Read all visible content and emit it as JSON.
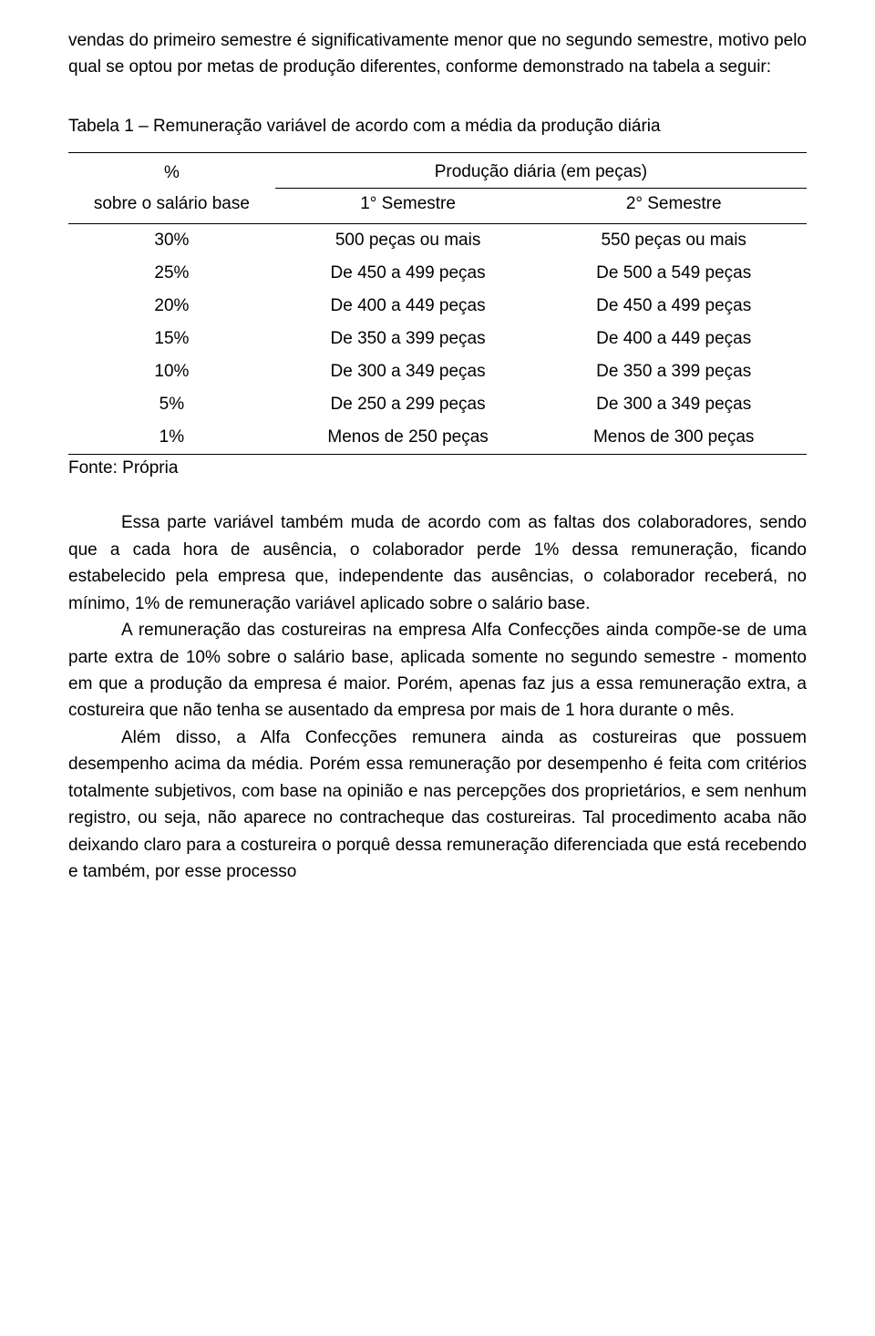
{
  "intro_para": "vendas do primeiro semestre é significativamente menor que no segundo semestre, motivo pelo qual se optou por metas de produção diferentes, conforme demonstrado na tabela a seguir:",
  "table_title": "Tabela 1 – Remuneração variável de acordo com a média da produção diária",
  "table": {
    "col1_label_line1": "%",
    "col1_label_line2": "sobre o salário base",
    "prod_header": "Produção diária (em peças)",
    "sem1_header": "1° Semestre",
    "sem2_header": "2° Semestre",
    "rows": [
      {
        "pct": "30%",
        "s1": "500 peças ou mais",
        "s2": "550 peças ou mais"
      },
      {
        "pct": "25%",
        "s1": "De 450 a 499 peças",
        "s2": "De 500 a 549 peças"
      },
      {
        "pct": "20%",
        "s1": "De 400 a 449 peças",
        "s2": "De 450 a 499 peças"
      },
      {
        "pct": "15%",
        "s1": "De 350 a 399 peças",
        "s2": "De 400 a 449 peças"
      },
      {
        "pct": "10%",
        "s1": "De 300 a 349 peças",
        "s2": "De 350 a 399 peças"
      },
      {
        "pct": "5%",
        "s1": "De 250 a 299 peças",
        "s2": "De 300 a 349 peças"
      },
      {
        "pct": "1%",
        "s1": "Menos de 250 peças",
        "s2": "Menos de 300 peças"
      }
    ]
  },
  "source": "Fonte: Própria",
  "body_paras": [
    "Essa parte variável também muda de acordo com as faltas dos colaboradores, sendo que a cada hora de ausência, o colaborador perde 1% dessa remuneração, ficando estabelecido pela empresa que, independente das ausências, o colaborador receberá, no mínimo, 1% de remuneração variável aplicado sobre o salário base.",
    "A remuneração das costureiras na empresa Alfa Confecções ainda compõe-se de uma parte extra de 10% sobre o salário base, aplicada somente no segundo semestre - momento em que a produção da empresa é maior. Porém, apenas faz jus a essa remuneração extra, a costureira que não tenha se ausentado da empresa por mais de 1 hora durante o mês.",
    "Além disso, a Alfa Confecções remunera ainda as costureiras que possuem desempenho acima da média. Porém essa remuneração por desempenho é feita com critérios totalmente subjetivos, com base na opinião e nas percepções dos proprietários, e sem nenhum registro, ou seja, não aparece no contracheque das costureiras. Tal procedimento acaba não deixando claro para a costureira o porquê dessa remuneração diferenciada que está recebendo e também, por esse processo"
  ]
}
